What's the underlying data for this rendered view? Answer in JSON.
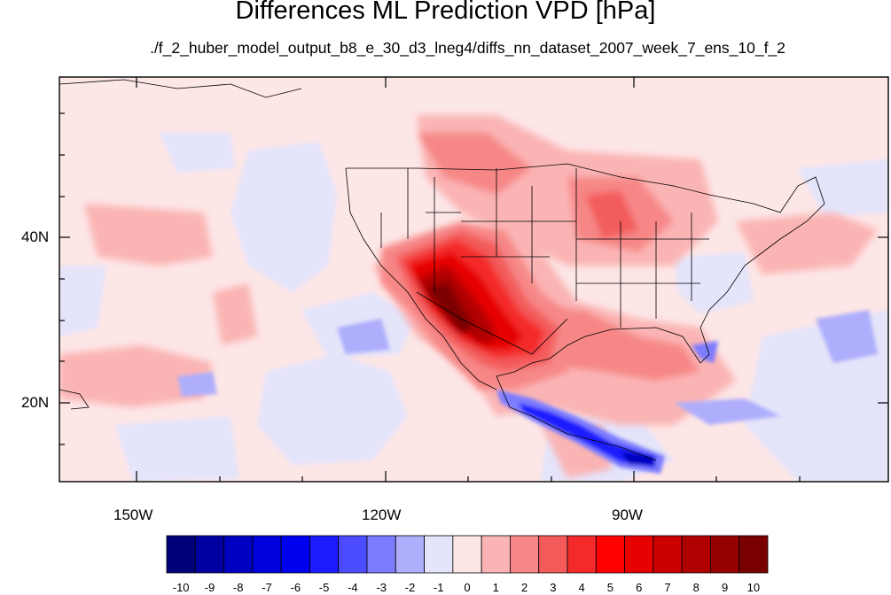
{
  "title": "Differences ML Prediction VPD [hPa]",
  "subtitle": "./f_2_huber_model_output_b8_e_30_d3_lneg4/diffs_nn_dataset_2007_week_7_ens_10_f_2",
  "lat_labels": [
    "40N",
    "20N"
  ],
  "lon_labels": [
    "150W",
    "120W",
    "90W"
  ],
  "colorbar": {
    "labels": [
      "-10",
      "-9",
      "-8",
      "-7",
      "-6",
      "-5",
      "-4",
      "-3",
      "-2",
      "-1",
      "0",
      "1",
      "2",
      "3",
      "4",
      "5",
      "6",
      "7",
      "8",
      "9",
      "10"
    ],
    "colors": [
      "#00007a",
      "#0000a0",
      "#0000c0",
      "#0000dc",
      "#0000f0",
      "#1c1cff",
      "#4b4bff",
      "#7b7bff",
      "#aeaefc",
      "#e4e4fb",
      "#fde6e6",
      "#fbb4b4",
      "#f78787",
      "#f35b5b",
      "#f42a2a",
      "#ff0000",
      "#e60000",
      "#cc0000",
      "#b00000",
      "#960000",
      "#7a0000"
    ]
  },
  "map": {
    "projection": "equirectangular",
    "lon_range": [
      -159,
      -61
    ],
    "lat_range": [
      11,
      60
    ],
    "field": "VPD difference (hPa)"
  }
}
